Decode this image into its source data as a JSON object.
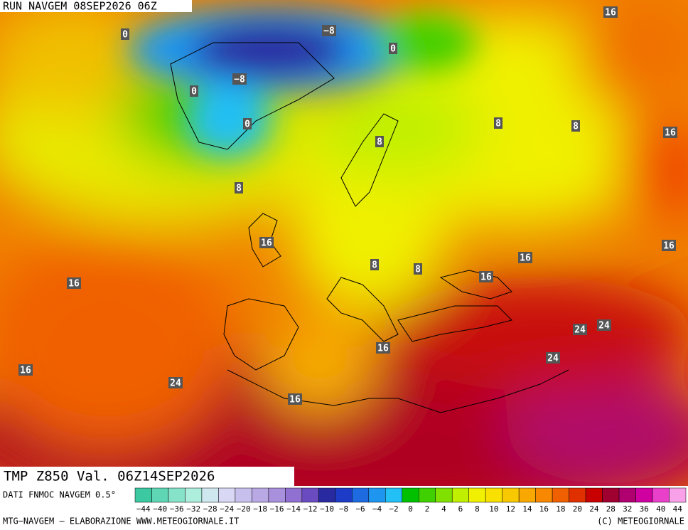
{
  "header": {
    "run": "RUN NAVGEM 08SEP2026 06Z"
  },
  "title": "TMP Z850 Val. 06Z14SEP2026",
  "source": "DATI FNMOC NAVGEM 0.5°",
  "map_labels": [
    0,
    -8,
    0,
    -8,
    0,
    0,
    16,
    8,
    8,
    8,
    16,
    8,
    16,
    16,
    16,
    16,
    8,
    8,
    16,
    24,
    24,
    16,
    24,
    16,
    24,
    16
  ],
  "colorbar": {
    "ticks": [
      -44,
      -40,
      -36,
      -32,
      -28,
      -24,
      -20,
      -18,
      -16,
      -14,
      -12,
      -10,
      -8,
      -6,
      -4,
      -2,
      0,
      2,
      4,
      6,
      8,
      10,
      12,
      14,
      16,
      18,
      20,
      24,
      28,
      32,
      36,
      40,
      44
    ],
    "colors": [
      "#3cc8a0",
      "#5fd6b4",
      "#86e2c8",
      "#aeeedc",
      "#cfe8f0",
      "#d8d8f4",
      "#c8c0ec",
      "#b8a8e4",
      "#a890dc",
      "#9070d0",
      "#6a4cc0",
      "#2a2aa0",
      "#1c3cc8",
      "#1e6ae0",
      "#1e96f0",
      "#22c0f4",
      "#00c000",
      "#40d000",
      "#80e000",
      "#c0f000",
      "#f0f000",
      "#f8e000",
      "#f8c800",
      "#f8a800",
      "#f88800",
      "#f06000",
      "#e03000",
      "#c80000",
      "#a00030",
      "#b00070",
      "#d000a0",
      "#e840c8",
      "#f8a0e8"
    ]
  },
  "footer": {
    "left": "MTG-NAVGEM – ELABORAZIONE WWW.METEOGIORNALE.IT",
    "right": "(C) METEOGIORNALE"
  }
}
